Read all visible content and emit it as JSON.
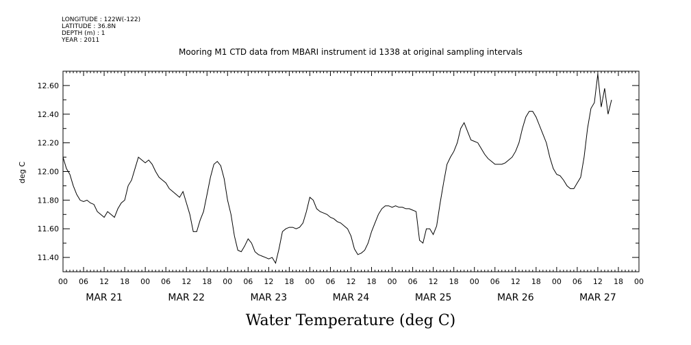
{
  "header": {
    "meta_lines": [
      "LONGITUDE : 122W(-122)",
      "LATITUDE : 36.8N",
      "DEPTH (m) : 1",
      "YEAR : 2011"
    ]
  },
  "chart_data": {
    "type": "line",
    "title": "Mooring M1 CTD data from MBARI instrument id 1338 at original sampling intervals",
    "ylabel": "deg C",
    "bottom_title": "Water Temperature (deg C)",
    "ylim": [
      11.3,
      12.7
    ],
    "y_ticks": [
      "11.40",
      "11.60",
      "11.80",
      "12.00",
      "12.20",
      "12.40",
      "12.60"
    ],
    "x_hour_ticks": [
      "00",
      "06",
      "12",
      "18",
      "00",
      "06",
      "12",
      "18",
      "00",
      "06",
      "12",
      "18",
      "00",
      "06",
      "12",
      "18",
      "00",
      "06",
      "12",
      "18",
      "00",
      "06",
      "12",
      "18",
      "00",
      "06",
      "12",
      "18",
      "00"
    ],
    "x_day_labels": [
      "MAR 21",
      "MAR 22",
      "MAR 23",
      "MAR 24",
      "MAR 25",
      "MAR 26",
      "MAR 27"
    ],
    "xlim_hours": [
      0,
      168
    ],
    "series": [
      {
        "color": "#000000",
        "points": [
          [
            0,
            12.1
          ],
          [
            1,
            12.02
          ],
          [
            2,
            11.98
          ],
          [
            3,
            11.9
          ],
          [
            4,
            11.84
          ],
          [
            5,
            11.8
          ],
          [
            6,
            11.79
          ],
          [
            7,
            11.8
          ],
          [
            8,
            11.78
          ],
          [
            9,
            11.77
          ],
          [
            10,
            11.72
          ],
          [
            11,
            11.7
          ],
          [
            12,
            11.68
          ],
          [
            13,
            11.72
          ],
          [
            14,
            11.7
          ],
          [
            15,
            11.68
          ],
          [
            16,
            11.74
          ],
          [
            17,
            11.78
          ],
          [
            18,
            11.8
          ],
          [
            19,
            11.9
          ],
          [
            20,
            11.94
          ],
          [
            21,
            12.02
          ],
          [
            22,
            12.1
          ],
          [
            23,
            12.08
          ],
          [
            24,
            12.06
          ],
          [
            25,
            12.08
          ],
          [
            26,
            12.05
          ],
          [
            27,
            12.0
          ],
          [
            28,
            11.96
          ],
          [
            29,
            11.94
          ],
          [
            30,
            11.92
          ],
          [
            31,
            11.88
          ],
          [
            32,
            11.86
          ],
          [
            33,
            11.84
          ],
          [
            34,
            11.82
          ],
          [
            35,
            11.86
          ],
          [
            36,
            11.78
          ],
          [
            37,
            11.7
          ],
          [
            38,
            11.58
          ],
          [
            39,
            11.58
          ],
          [
            40,
            11.66
          ],
          [
            41,
            11.72
          ],
          [
            42,
            11.84
          ],
          [
            43,
            11.96
          ],
          [
            44,
            12.05
          ],
          [
            45,
            12.07
          ],
          [
            46,
            12.04
          ],
          [
            47,
            11.95
          ],
          [
            48,
            11.8
          ],
          [
            49,
            11.7
          ],
          [
            50,
            11.55
          ],
          [
            51,
            11.45
          ],
          [
            52,
            11.44
          ],
          [
            53,
            11.48
          ],
          [
            54,
            11.53
          ],
          [
            55,
            11.5
          ],
          [
            56,
            11.44
          ],
          [
            57,
            11.42
          ],
          [
            58,
            11.41
          ],
          [
            59,
            11.4
          ],
          [
            60,
            11.39
          ],
          [
            61,
            11.4
          ],
          [
            62,
            11.36
          ],
          [
            63,
            11.46
          ],
          [
            64,
            11.58
          ],
          [
            65,
            11.6
          ],
          [
            66,
            11.61
          ],
          [
            67,
            11.61
          ],
          [
            68,
            11.6
          ],
          [
            69,
            11.61
          ],
          [
            70,
            11.64
          ],
          [
            71,
            11.72
          ],
          [
            72,
            11.82
          ],
          [
            73,
            11.8
          ],
          [
            74,
            11.74
          ],
          [
            75,
            11.72
          ],
          [
            76,
            11.71
          ],
          [
            77,
            11.7
          ],
          [
            78,
            11.68
          ],
          [
            79,
            11.67
          ],
          [
            80,
            11.65
          ],
          [
            81,
            11.64
          ],
          [
            82,
            11.62
          ],
          [
            83,
            11.6
          ],
          [
            84,
            11.55
          ],
          [
            85,
            11.46
          ],
          [
            86,
            11.42
          ],
          [
            87,
            11.43
          ],
          [
            88,
            11.45
          ],
          [
            89,
            11.5
          ],
          [
            90,
            11.58
          ],
          [
            91,
            11.64
          ],
          [
            92,
            11.7
          ],
          [
            93,
            11.74
          ],
          [
            94,
            11.76
          ],
          [
            95,
            11.76
          ],
          [
            96,
            11.75
          ],
          [
            97,
            11.76
          ],
          [
            98,
            11.75
          ],
          [
            99,
            11.75
          ],
          [
            100,
            11.74
          ],
          [
            101,
            11.74
          ],
          [
            102,
            11.73
          ],
          [
            103,
            11.72
          ],
          [
            104,
            11.52
          ],
          [
            105,
            11.5
          ],
          [
            106,
            11.6
          ],
          [
            107,
            11.6
          ],
          [
            108,
            11.56
          ],
          [
            109,
            11.62
          ],
          [
            110,
            11.78
          ],
          [
            111,
            11.92
          ],
          [
            112,
            12.05
          ],
          [
            113,
            12.1
          ],
          [
            114,
            12.14
          ],
          [
            115,
            12.2
          ],
          [
            116,
            12.3
          ],
          [
            117,
            12.34
          ],
          [
            118,
            12.28
          ],
          [
            119,
            12.22
          ],
          [
            120,
            12.21
          ],
          [
            121,
            12.2
          ],
          [
            122,
            12.16
          ],
          [
            123,
            12.12
          ],
          [
            124,
            12.09
          ],
          [
            125,
            12.07
          ],
          [
            126,
            12.05
          ],
          [
            127,
            12.05
          ],
          [
            128,
            12.05
          ],
          [
            129,
            12.06
          ],
          [
            130,
            12.08
          ],
          [
            131,
            12.1
          ],
          [
            132,
            12.14
          ],
          [
            133,
            12.2
          ],
          [
            134,
            12.3
          ],
          [
            135,
            12.38
          ],
          [
            136,
            12.42
          ],
          [
            137,
            12.42
          ],
          [
            138,
            12.38
          ],
          [
            139,
            12.32
          ],
          [
            140,
            12.26
          ],
          [
            141,
            12.2
          ],
          [
            142,
            12.1
          ],
          [
            143,
            12.02
          ],
          [
            144,
            11.98
          ],
          [
            145,
            11.97
          ],
          [
            146,
            11.94
          ],
          [
            147,
            11.9
          ],
          [
            148,
            11.88
          ],
          [
            149,
            11.88
          ],
          [
            150,
            11.92
          ],
          [
            151,
            11.96
          ],
          [
            152,
            12.1
          ],
          [
            153,
            12.3
          ],
          [
            154,
            12.44
          ],
          [
            155,
            12.48
          ],
          [
            156,
            12.68
          ],
          [
            157,
            12.45
          ],
          [
            158,
            12.58
          ],
          [
            159,
            12.4
          ],
          [
            160,
            12.5
          ]
        ]
      }
    ],
    "grid": false,
    "legend": "none"
  }
}
